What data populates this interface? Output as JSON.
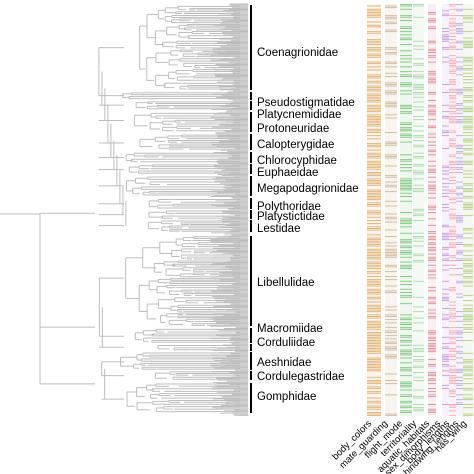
{
  "families": [
    {
      "name": "Coenagrionidae"
    },
    {
      "name": "Pseudostigmatidae"
    },
    {
      "name": "Platycnemididae"
    },
    {
      "name": "Protoneuridae"
    },
    {
      "name": "Calopterygidae"
    },
    {
      "name": "Chlorocyphidae"
    },
    {
      "name": "Euphaeidae"
    },
    {
      "name": "Megapodagrionidae"
    },
    {
      "name": "Polythoridae"
    },
    {
      "name": "Platystictidae"
    },
    {
      "name": "Lestidae"
    },
    {
      "name": "Libellulidae"
    },
    {
      "name": "Macromiidae"
    },
    {
      "name": "Corduliidae"
    },
    {
      "name": "Aeshnidae"
    },
    {
      "name": "Cordulegastridae"
    },
    {
      "name": "Gomphidae"
    }
  ],
  "traits": [
    {
      "name": "body_colors",
      "color": "#d9a55a"
    },
    {
      "name": "mate_guarding",
      "color": "#c9ad8a"
    },
    {
      "name": "flight_mode",
      "color": "#6cbf6c"
    },
    {
      "name": "territoriality",
      "color": "#9fd49f"
    },
    {
      "name": "aquatic_habitats",
      "color": "#e07a8a"
    },
    {
      "name": "sex_dimorphisms",
      "color": "#c08adf"
    },
    {
      "name": "body_lengths",
      "color": "#f2a0b0"
    },
    {
      "name": "hindwing_lengths",
      "color": "#b0a0e0"
    },
    {
      "name": "has_wing",
      "color": "#a8c870"
    }
  ],
  "colors": {
    "tree": "#bdbdbd",
    "clade_bar": "#000000"
  }
}
